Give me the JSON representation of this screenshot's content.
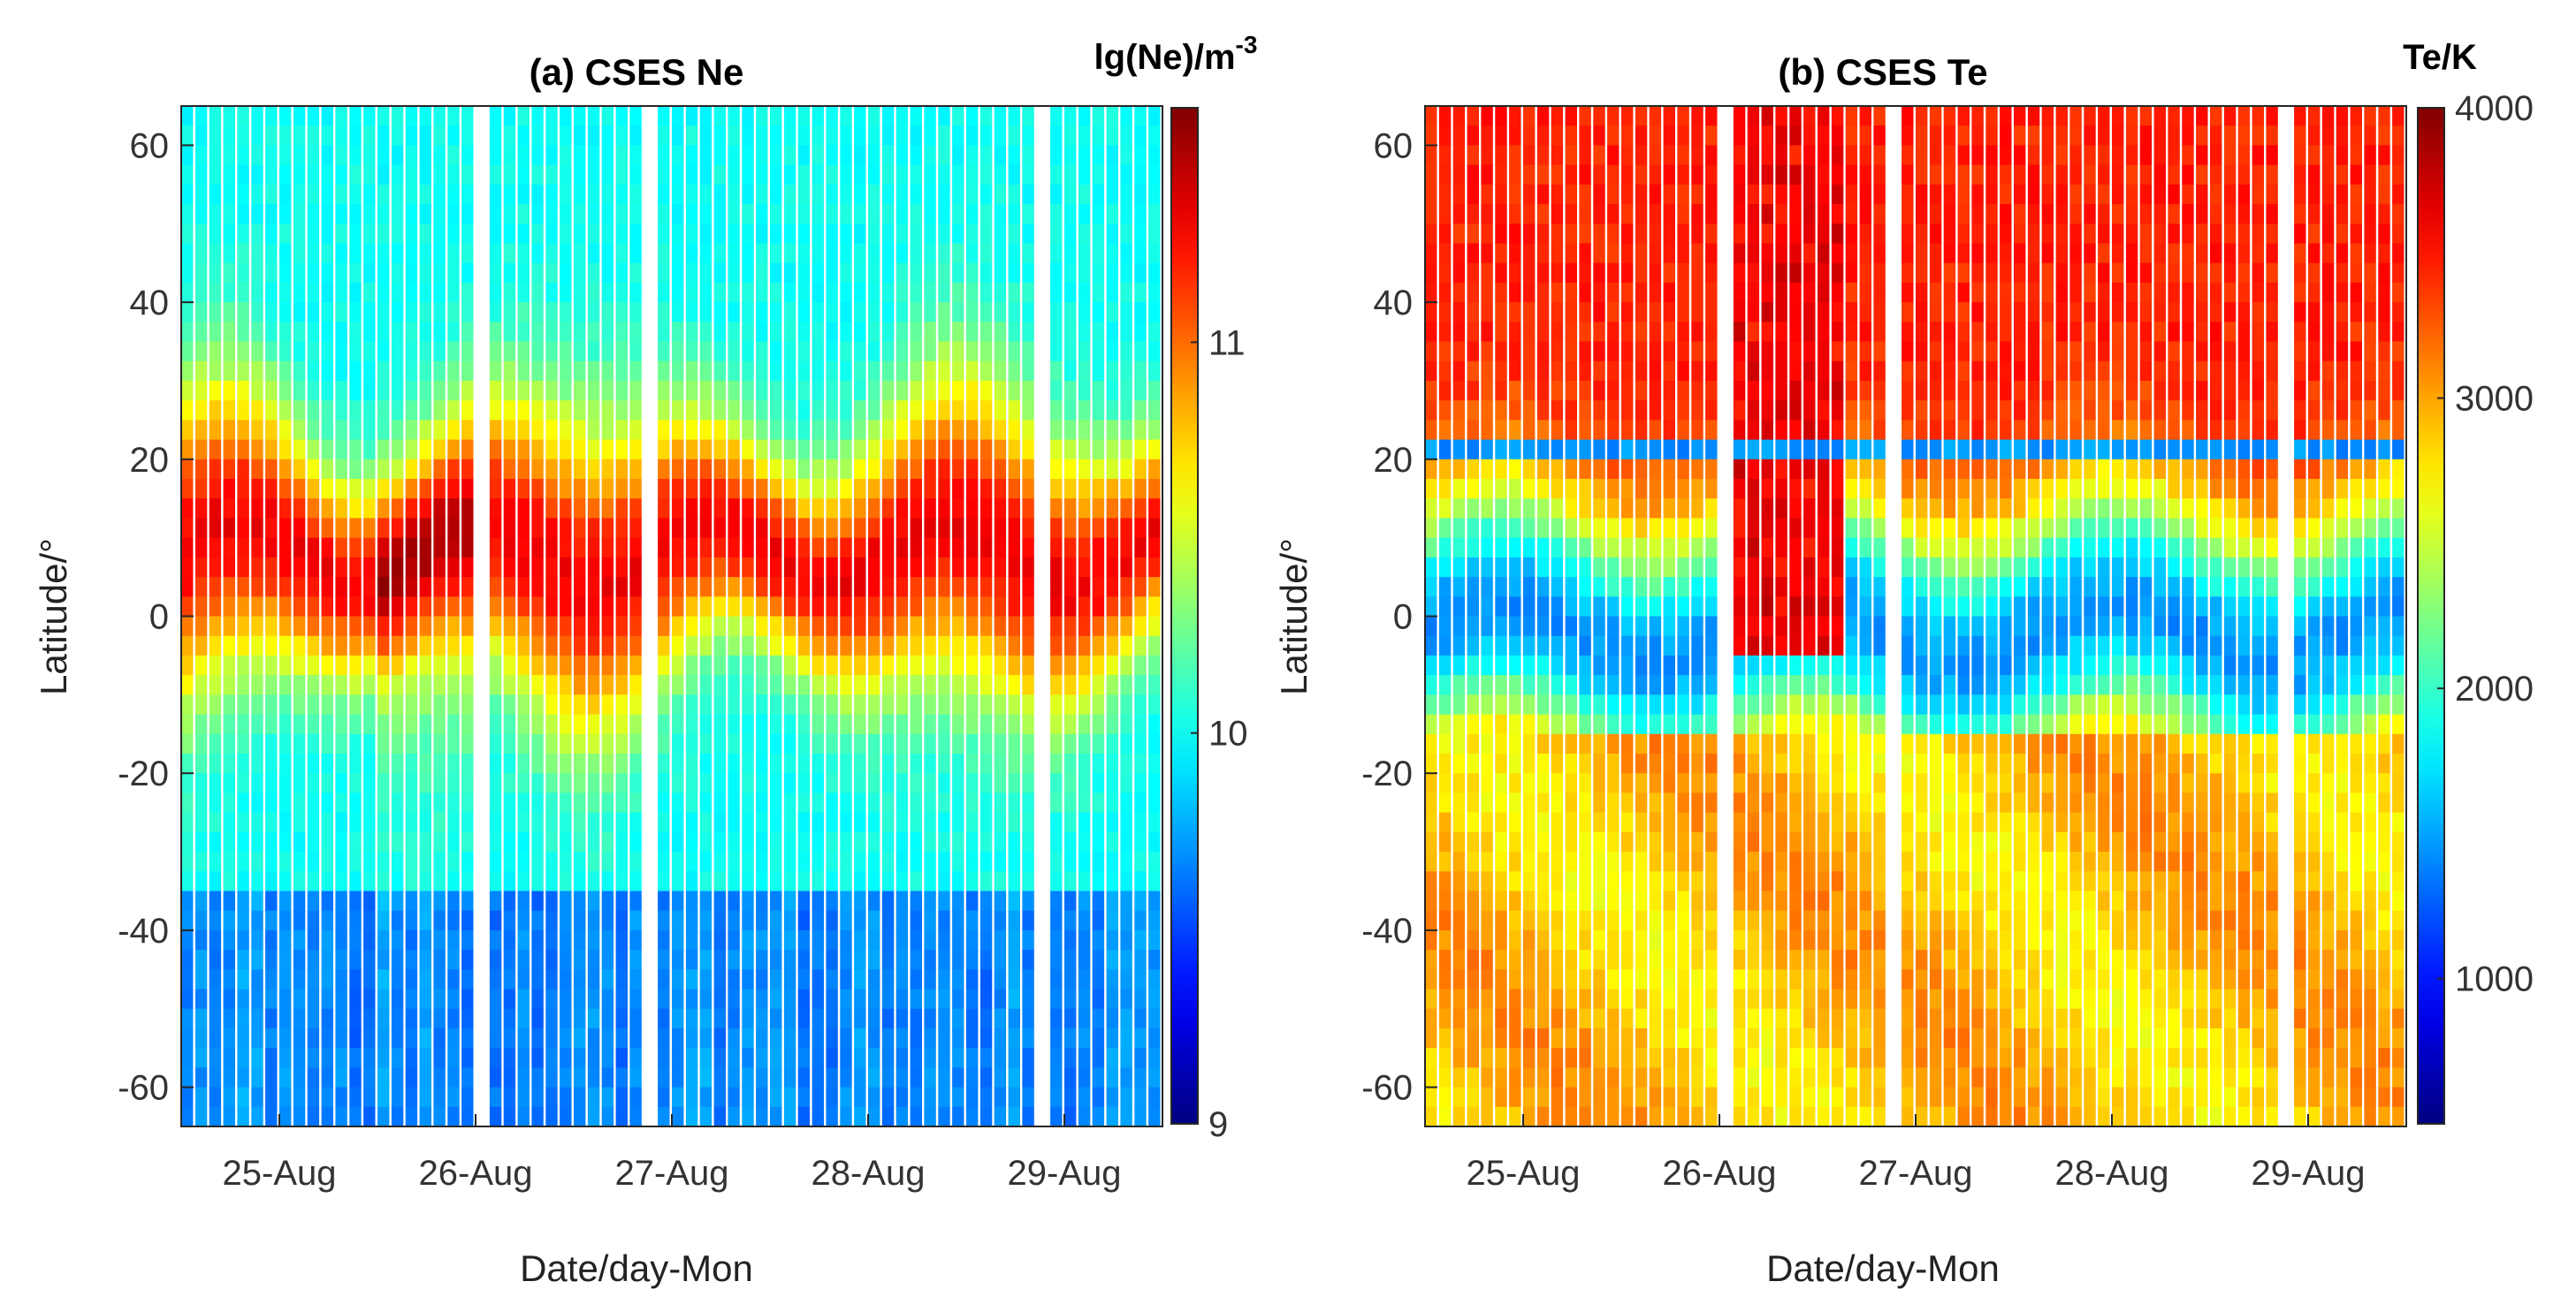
{
  "chart_data": [
    {
      "type": "heatmap",
      "panel": "(a) CSES Ne",
      "title": "(a) CSES Ne",
      "xlabel": "Date/day-Mon",
      "ylabel": "Latitude/°",
      "x_ticks": [
        "25-Aug",
        "26-Aug",
        "27-Aug",
        "28-Aug",
        "29-Aug"
      ],
      "x_range_days": [
        25.0,
        30.0
      ],
      "ylim": [
        -65,
        65
      ],
      "y_ticks": [
        "60",
        "40",
        "20",
        "0",
        "-20",
        "-40",
        "-60"
      ],
      "y_tick_values": [
        60,
        40,
        20,
        0,
        -20,
        -40,
        -60
      ],
      "colorbar": {
        "label": "lg(Ne)/m",
        "label_superscript": "-3",
        "colormap": "jet",
        "range": [
          9,
          11.6
        ],
        "ticks": [
          "9",
          "10",
          "11"
        ],
        "tick_values": [
          9,
          10,
          11
        ]
      },
      "data_gaps_days": [
        [
          26.47,
          26.55
        ],
        [
          27.35,
          27.42
        ],
        [
          29.36,
          29.43
        ]
      ],
      "features": {
        "eia_crest_band_lat": [
          -10,
          25
        ],
        "peak_value": 11.5,
        "background_value": 10.0
      }
    },
    {
      "type": "heatmap",
      "panel": "(b) CSES Te",
      "title": "(b) CSES Te",
      "xlabel": "Date/day-Mon",
      "ylabel": "Latitude/°",
      "x_ticks": [
        "25-Aug",
        "26-Aug",
        "27-Aug",
        "28-Aug",
        "29-Aug"
      ],
      "x_range_days": [
        25.0,
        30.0
      ],
      "ylim": [
        -65,
        65
      ],
      "y_ticks": [
        "60",
        "40",
        "20",
        "0",
        "-20",
        "-40",
        "-60"
      ],
      "y_tick_values": [
        60,
        40,
        20,
        0,
        -20,
        -40,
        -60
      ],
      "colorbar": {
        "label": "Te/K",
        "colormap": "jet",
        "range": [
          500,
          4000
        ],
        "ticks": [
          "1000",
          "2000",
          "3000",
          "4000"
        ],
        "tick_values": [
          1000,
          2000,
          3000,
          4000
        ]
      },
      "data_gaps_days": [
        [
          26.47,
          26.55
        ],
        [
          27.35,
          27.42
        ],
        [
          29.36,
          29.43
        ]
      ],
      "features": {
        "equatorial_trough_lat": [
          -25,
          20
        ],
        "trough_value": 1200,
        "high_latitude_value": 3500,
        "line_latitude": 21.5
      }
    }
  ]
}
